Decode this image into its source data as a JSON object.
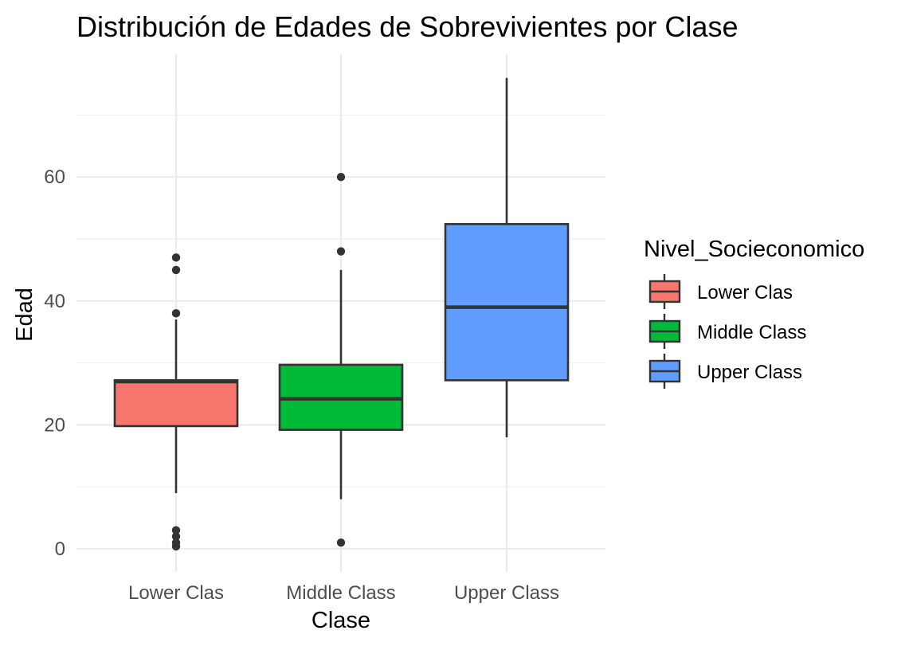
{
  "chart_data": {
    "type": "boxplot",
    "title": "Distribución de Edades de Sobrevivientes por Clase",
    "xlabel": "Clase",
    "ylabel": "Edad",
    "categories": [
      "Lower Clas",
      "Middle Class",
      "Upper Class"
    ],
    "ylim": [
      -2,
      80
    ],
    "y_ticks": [
      0,
      20,
      40,
      60
    ],
    "grid": true,
    "legend": {
      "title": "Nivel_Socieconomico",
      "position": "right",
      "entries": [
        "Lower Clas",
        "Middle Class",
        "Upper Class"
      ]
    },
    "boxes": [
      {
        "category": "Lower Clas",
        "color": "#F8766D",
        "whisker_low": 9,
        "q1": 19.8,
        "median": 27,
        "q3": 27.2,
        "whisker_high": 37,
        "outliers": [
          38,
          45,
          47,
          0.4,
          1,
          2,
          3
        ]
      },
      {
        "category": "Middle Class",
        "color": "#00BA38",
        "whisker_low": 8,
        "q1": 19.2,
        "median": 24.2,
        "q3": 29.7,
        "whisker_high": 45,
        "outliers": [
          48,
          60,
          1
        ]
      },
      {
        "category": "Upper Class",
        "color": "#619CFF",
        "whisker_low": 18,
        "q1": 27.2,
        "median": 39,
        "q3": 52.4,
        "whisker_high": 76,
        "outliers": []
      }
    ]
  }
}
